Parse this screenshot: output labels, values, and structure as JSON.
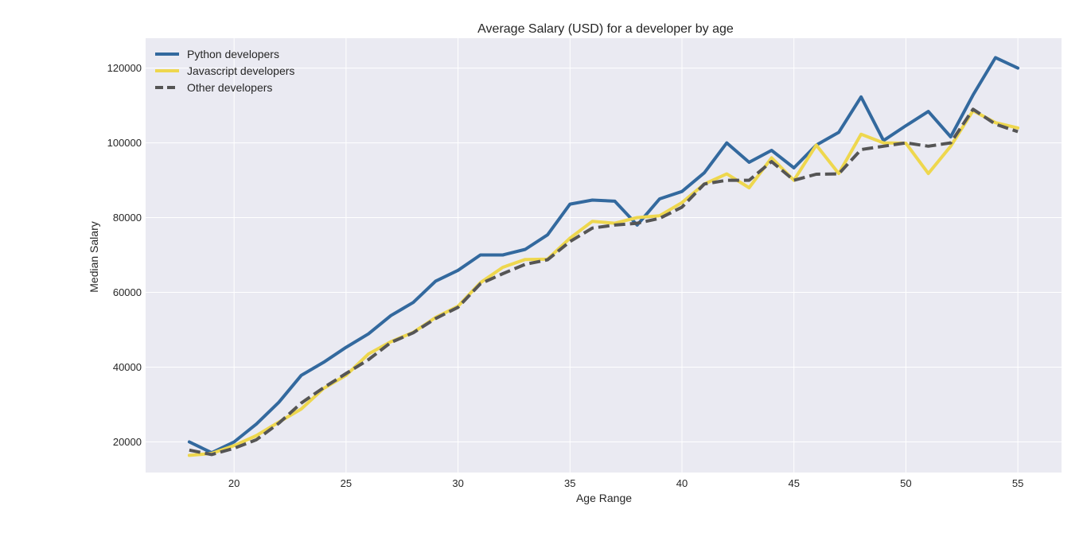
{
  "chart_data": {
    "type": "line",
    "title": "Average Salary (USD) for a developer by age",
    "xlabel": "Age Range",
    "ylabel": "Median Salary",
    "xlim": [
      16.05,
      56.95
    ],
    "ylim": [
      11800,
      128000
    ],
    "xticks": [
      "20",
      "25",
      "30",
      "35",
      "40",
      "45",
      "50",
      "55"
    ],
    "yticks": [
      "20000",
      "40000",
      "60000",
      "80000",
      "100000",
      "120000"
    ],
    "grid": true,
    "legend_position": "top-left",
    "x": [
      18,
      19,
      20,
      21,
      22,
      23,
      24,
      25,
      26,
      27,
      28,
      29,
      30,
      31,
      32,
      33,
      34,
      35,
      36,
      37,
      38,
      39,
      40,
      41,
      42,
      43,
      44,
      45,
      46,
      47,
      48,
      49,
      50,
      51,
      52,
      53,
      54,
      55
    ],
    "series": [
      {
        "name": "Python developers",
        "color": "#33699e",
        "style": "solid",
        "values": [
          20000,
          17100,
          20000,
          24800,
          30600,
          37800,
          41300,
          45300,
          48900,
          53800,
          57300,
          63000,
          65900,
          70000,
          70000,
          71500,
          75400,
          83600,
          84700,
          84400,
          78000,
          85000,
          87000,
          92000,
          100000,
          94800,
          98000,
          93300,
          99400,
          102800,
          112300,
          100600,
          104600,
          108400,
          101600,
          112800,
          122800,
          120000
        ]
      },
      {
        "name": "Javascript developers",
        "color": "#eed74e",
        "style": "solid",
        "values": [
          16400,
          16900,
          19000,
          21700,
          25300,
          28800,
          34300,
          37800,
          43500,
          46800,
          49300,
          53300,
          56300,
          62600,
          66700,
          68800,
          68900,
          74500,
          79000,
          78500,
          80000,
          80500,
          84000,
          89000,
          91700,
          88000,
          96000,
          90000,
          99400,
          91800,
          102300,
          100000,
          99900,
          91800,
          99100,
          108600,
          105400,
          104000
        ]
      },
      {
        "name": "Other developers",
        "color": "#555555",
        "style": "dashed",
        "values": [
          17800,
          16600,
          18300,
          20600,
          25000,
          30400,
          34500,
          38300,
          42000,
          46600,
          49200,
          53000,
          56000,
          62300,
          65000,
          67500,
          68700,
          73600,
          77200,
          78000,
          78500,
          79800,
          82800,
          89000,
          90000,
          90000,
          95000,
          90000,
          91600,
          91700,
          98200,
          99100,
          100000,
          99100,
          100000,
          109000,
          105000,
          103000
        ]
      }
    ]
  }
}
